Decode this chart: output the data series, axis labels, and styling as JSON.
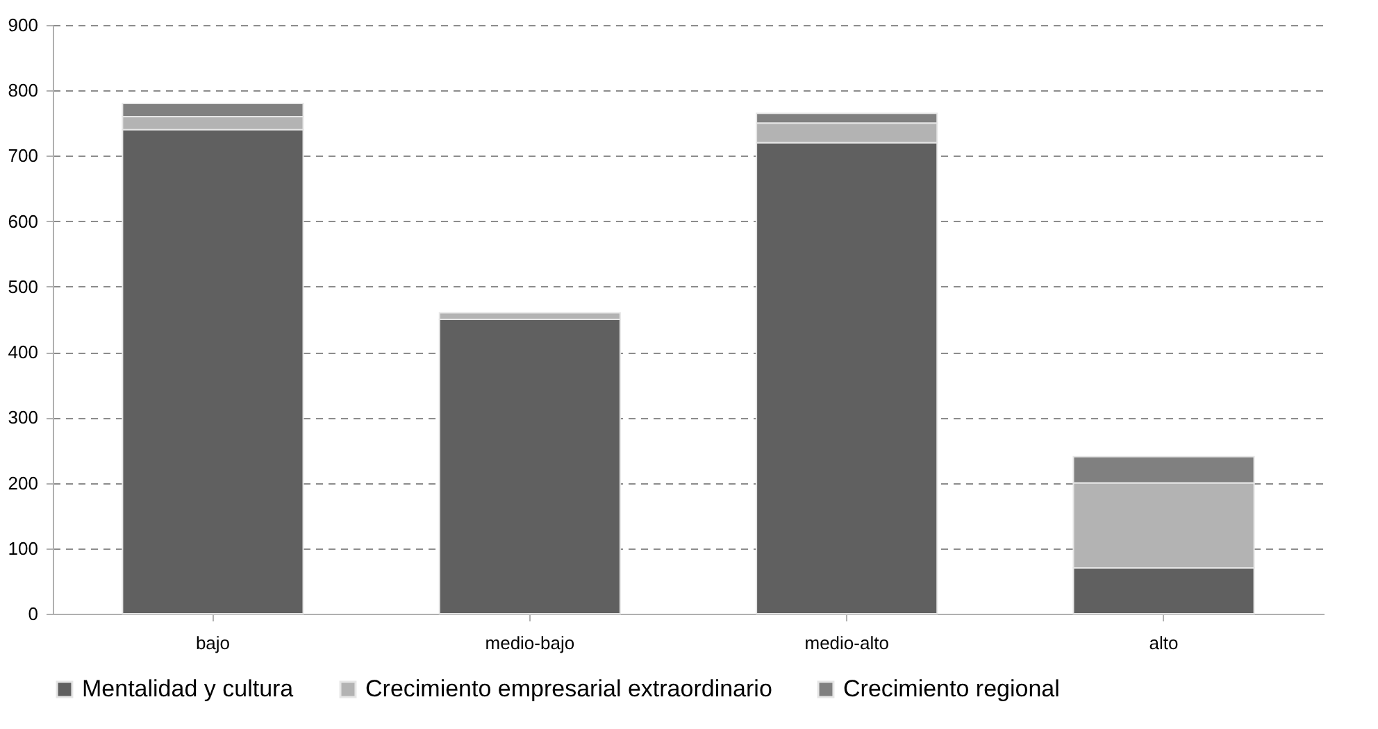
{
  "chart_data": {
    "type": "bar",
    "stacked": true,
    "categories": [
      "bajo",
      "medio-bajo",
      "medio-alto",
      "alto"
    ],
    "series": [
      {
        "name": "Mentalidad y cultura",
        "color": "#606060",
        "values": [
          740,
          450,
          720,
          70
        ]
      },
      {
        "name": "Crecimiento empresarial extraordinario",
        "color": "#b3b3b3",
        "values": [
          20,
          10,
          30,
          130
        ]
      },
      {
        "name": "Crecimiento regional",
        "color": "#808080",
        "values": [
          20,
          null,
          15,
          40
        ]
      }
    ],
    "ylim": [
      0,
      900
    ],
    "yticks": [
      0,
      100,
      200,
      300,
      400,
      500,
      600,
      700,
      800,
      900
    ],
    "grid": "y",
    "legend": "bottom"
  }
}
